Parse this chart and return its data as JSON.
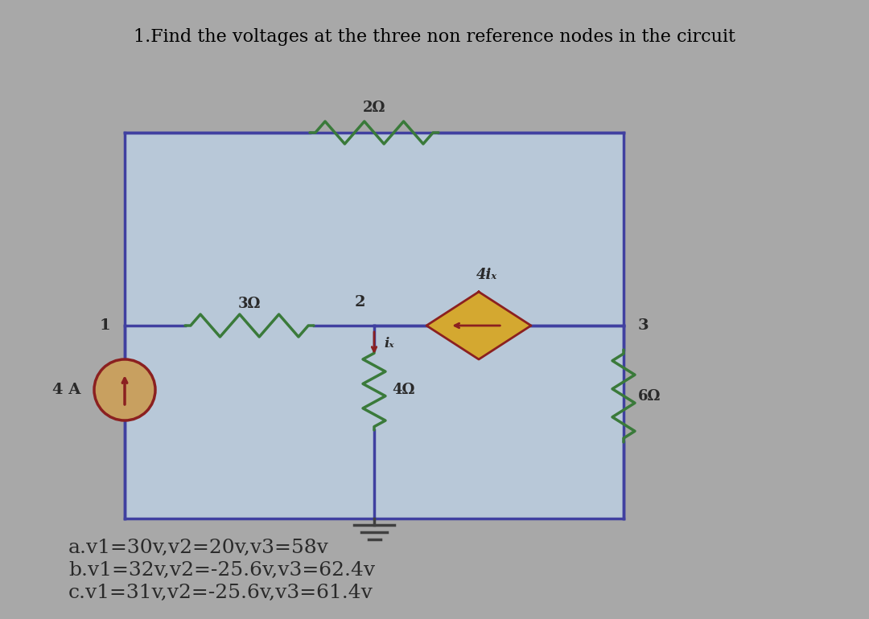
{
  "title": "1.Find the voltages at the three non reference nodes in the circuit",
  "title_fontsize": 16,
  "bg_color": "#a8a8a8",
  "circuit_bg": "#b8c8d8",
  "wire_color": "#4040a0",
  "resistor_color": "#3a7a3a",
  "source_color": "#8b2020",
  "source_fill": "#c8a060",
  "diamond_fill": "#d4a830",
  "diamond_edge": "#8b2020",
  "answers": [
    "a.v1=30v,v2=20v,v3=58v",
    "b.v1=32v,v2=-25.6v,v3=62.4v",
    "c.v1=31v,v2=-25.6v,v3=61.4v"
  ],
  "answer_fontsize": 18,
  "label_color": "#2a2a2a",
  "node_labels": [
    "1",
    "2",
    "3"
  ],
  "resistor_labels": [
    "2Ω",
    "3Ω",
    "4Ω",
    "6Ω"
  ],
  "source_label": "4 A",
  "dependent_label": "4iₓ",
  "ix_label": "iₓ"
}
